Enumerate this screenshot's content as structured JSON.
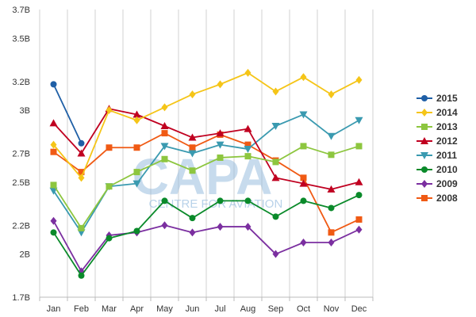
{
  "chart_data": {
    "type": "line",
    "categories": [
      "Jan",
      "Feb",
      "Mar",
      "Apr",
      "May",
      "Jun",
      "Jul",
      "Aug",
      "Sep",
      "Oct",
      "Nov",
      "Dec"
    ],
    "ylim": [
      1.7,
      3.7
    ],
    "yticks": [
      {
        "value": 1.7,
        "label": "1.7B"
      },
      {
        "value": 2.0,
        "label": "2B"
      },
      {
        "value": 2.2,
        "label": "2.2B"
      },
      {
        "value": 2.5,
        "label": "2.5B"
      },
      {
        "value": 2.7,
        "label": "2.7B"
      },
      {
        "value": 3.0,
        "label": "3B"
      },
      {
        "value": 3.2,
        "label": "3.2B"
      },
      {
        "value": 3.5,
        "label": "3.5B"
      },
      {
        "value": 3.7,
        "label": "3.7B"
      }
    ],
    "grid": "vertical",
    "legend_position": "right",
    "watermark": {
      "logo": "CAPA",
      "text": "CENTRE FOR AVIATION",
      "color": "#9bbfe0"
    },
    "series": [
      {
        "name": "2015",
        "color": "#1f5fa6",
        "marker": "circle",
        "values": [
          3.18,
          2.77,
          null,
          null,
          null,
          null,
          null,
          null,
          null,
          null,
          null,
          null
        ]
      },
      {
        "name": "2014",
        "color": "#f5c518",
        "marker": "diamond",
        "values": [
          2.76,
          2.53,
          3.0,
          2.93,
          3.02,
          3.11,
          3.18,
          3.26,
          3.13,
          3.23,
          3.11,
          3.21
        ]
      },
      {
        "name": "2013",
        "color": "#8dc63f",
        "marker": "square",
        "values": [
          2.48,
          2.18,
          2.47,
          2.57,
          2.66,
          2.58,
          2.67,
          2.68,
          2.64,
          2.75,
          2.69,
          2.75
        ]
      },
      {
        "name": "2012",
        "color": "#c00020",
        "marker": "triangle-up",
        "values": [
          2.91,
          2.7,
          3.01,
          2.97,
          2.89,
          2.81,
          2.84,
          2.87,
          2.53,
          2.49,
          2.45,
          2.5
        ]
      },
      {
        "name": "2011",
        "color": "#3a9ab0",
        "marker": "triangle-down",
        "values": [
          2.44,
          2.15,
          2.47,
          2.49,
          2.75,
          2.7,
          2.76,
          2.73,
          2.89,
          2.97,
          2.82,
          2.93
        ]
      },
      {
        "name": "2010",
        "color": "#0a8a2a",
        "marker": "circle",
        "values": [
          2.15,
          1.85,
          2.11,
          2.16,
          2.37,
          2.25,
          2.37,
          2.37,
          2.26,
          2.37,
          2.32,
          2.41
        ]
      },
      {
        "name": "2009",
        "color": "#7b2fa0",
        "marker": "diamond",
        "values": [
          2.23,
          1.88,
          2.13,
          2.15,
          2.2,
          2.15,
          2.19,
          2.19,
          2.0,
          2.08,
          2.08,
          2.17
        ]
      },
      {
        "name": "2008",
        "color": "#f05a14",
        "marker": "square",
        "values": [
          2.71,
          2.57,
          2.74,
          2.74,
          2.84,
          2.74,
          2.83,
          2.76,
          2.65,
          2.53,
          2.15,
          2.24
        ]
      }
    ]
  }
}
